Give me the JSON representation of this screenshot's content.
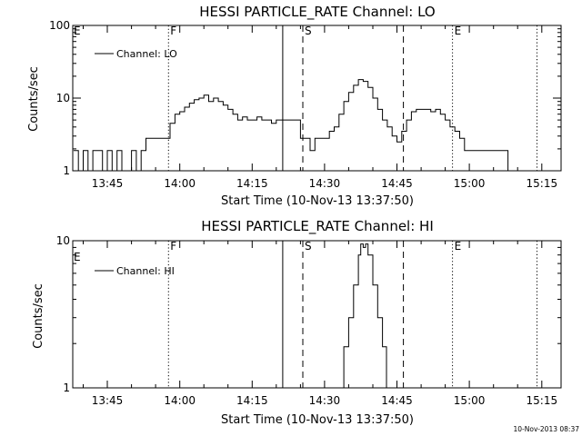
{
  "chart_data": [
    {
      "type": "line",
      "title": "HESSI PARTICLE_RATE Channel: LO",
      "xlabel": "Start Time (10-Nov-13 13:37:50)",
      "ylabel": "Counts/sec",
      "yscale": "log",
      "ylim": [
        1,
        100
      ],
      "xlim": [
        "13:37:50",
        "15:19:00"
      ],
      "x_ticks": [
        "13:45",
        "14:00",
        "14:15",
        "14:30",
        "14:45",
        "15:00",
        "15:15"
      ],
      "y_ticks": [
        "1",
        "10",
        "100"
      ],
      "legend": {
        "placement": "top-left",
        "entries": [
          "Channel: LO"
        ]
      },
      "series": [
        {
          "name": "Channel: LO",
          "x": [
            "13:38",
            "13:39",
            "13:40",
            "13:41",
            "13:42",
            "13:43",
            "13:44",
            "13:45",
            "13:46",
            "13:47",
            "13:48",
            "13:49",
            "13:50",
            "13:51",
            "13:52",
            "13:53",
            "13:54",
            "13:55",
            "13:56",
            "13:58",
            "13:59",
            "14:00",
            "14:01",
            "14:02",
            "14:03",
            "14:04",
            "14:05",
            "14:06",
            "14:07",
            "14:08",
            "14:09",
            "14:10",
            "14:11",
            "14:12",
            "14:13",
            "14:14",
            "14:15",
            "14:16",
            "14:17",
            "14:18",
            "14:19",
            "14:20",
            "14:21",
            "14:22",
            "14:23",
            "14:24",
            "14:25",
            "14:26",
            "14:27",
            "14:28",
            "14:29",
            "14:30",
            "14:31",
            "14:32",
            "14:33",
            "14:34",
            "14:35",
            "14:36",
            "14:37",
            "14:38",
            "14:39",
            "14:40",
            "14:41",
            "14:42",
            "14:43",
            "14:44",
            "14:45",
            "14:46",
            "14:47",
            "14:48",
            "14:49",
            "14:50",
            "14:51",
            "14:52",
            "14:53",
            "14:54",
            "14:55",
            "14:56",
            "14:57",
            "14:58",
            "14:59",
            "15:00",
            "15:01",
            "15:02",
            "15:03",
            "15:04",
            "15:05",
            "15:06",
            "15:07",
            "15:08",
            "15:09",
            "15:10",
            "15:11",
            "15:12",
            "15:13",
            "15:14"
          ],
          "values": [
            1.9,
            1,
            1.9,
            1,
            1.9,
            1.9,
            1,
            1.9,
            1,
            1.9,
            1,
            1,
            1.9,
            1,
            1.9,
            2.8,
            2.8,
            2.8,
            2.8,
            4.5,
            6,
            6.5,
            7.5,
            8.5,
            9.5,
            10,
            11,
            9,
            10,
            9,
            8,
            7,
            6,
            5,
            5.5,
            5,
            5,
            5.5,
            5,
            5,
            4.5,
            5,
            5,
            5,
            5,
            5,
            2.8,
            2.8,
            1.9,
            2.8,
            2.8,
            2.8,
            3.5,
            4,
            6,
            9,
            12,
            15,
            18,
            17,
            14,
            10,
            7,
            5,
            4,
            3,
            2.5,
            3.5,
            5,
            6.5,
            7,
            7,
            7,
            6.5,
            7,
            6,
            5,
            4,
            3.5,
            2.8,
            1.9,
            1.9,
            1.9,
            1.9,
            1.9,
            1.9,
            1.9,
            1.9,
            1.9,
            1,
            1,
            1,
            1,
            1,
            1,
            1
          ]
        }
      ],
      "vlines": [
        {
          "time": "13:57:40",
          "style": "dotted",
          "label": "F"
        },
        {
          "time": "14:21:20",
          "style": "solid",
          "label": ""
        },
        {
          "time": "14:25:30",
          "style": "dashed",
          "label": "S"
        },
        {
          "time": "14:46:20",
          "style": "dashed",
          "label": ""
        },
        {
          "time": "14:56:30",
          "style": "dotted",
          "label": "E"
        },
        {
          "time": "15:14:00",
          "style": "dotted",
          "label": ""
        }
      ],
      "corner_label": "E"
    },
    {
      "type": "line",
      "title": "HESSI PARTICLE_RATE Channel: HI",
      "xlabel": "Start Time (10-Nov-13 13:37:50)",
      "ylabel": "Counts/sec",
      "yscale": "log",
      "ylim": [
        1,
        10
      ],
      "xlim": [
        "13:37:50",
        "15:19:00"
      ],
      "x_ticks": [
        "13:45",
        "14:00",
        "14:15",
        "14:30",
        "14:45",
        "15:00",
        "15:15"
      ],
      "y_ticks": [
        "1",
        "10"
      ],
      "legend": {
        "placement": "top-left",
        "entries": [
          "Channel: HI"
        ]
      },
      "series": [
        {
          "name": "Channel: HI",
          "x": [
            "14:33:20",
            "14:34:00",
            "14:35:00",
            "14:36:00",
            "14:37:00",
            "14:37:30",
            "14:38:00",
            "14:38:30",
            "14:39:00",
            "14:40:00",
            "14:41:00",
            "14:42:00",
            "14:42:50"
          ],
          "values": [
            1,
            1.9,
            3,
            5,
            8,
            9.5,
            9,
            9.5,
            8,
            5,
            3,
            1.9,
            1
          ]
        }
      ],
      "vlines": [
        {
          "time": "13:57:40",
          "style": "dotted",
          "label": "F"
        },
        {
          "time": "14:21:20",
          "style": "solid",
          "label": ""
        },
        {
          "time": "14:25:30",
          "style": "dashed",
          "label": "S"
        },
        {
          "time": "14:46:20",
          "style": "dashed",
          "label": ""
        },
        {
          "time": "14:56:30",
          "style": "dotted",
          "label": "E"
        },
        {
          "time": "15:14:00",
          "style": "dotted",
          "label": ""
        }
      ],
      "corner_label": "E"
    }
  ],
  "footer": {
    "stamp": "10-Nov-2013 08:37"
  }
}
